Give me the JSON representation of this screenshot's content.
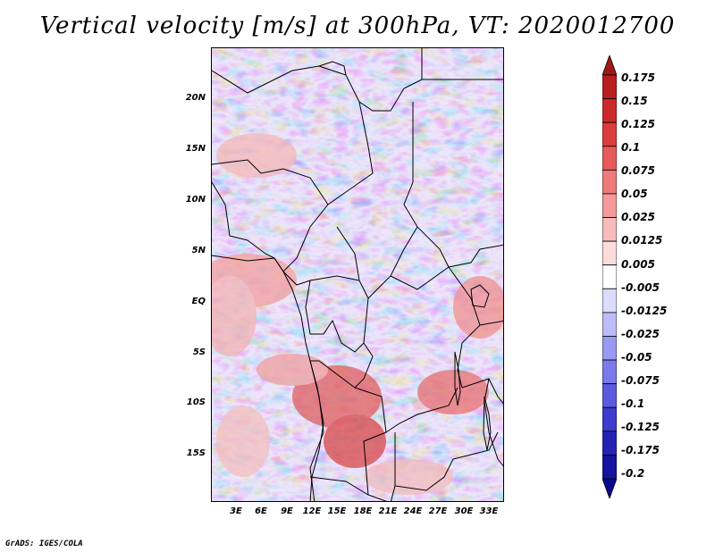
{
  "title": "Vertical velocity [m/s] at 300hPa, VT: 2020012700",
  "credit": "GrADS: IGES/COLA",
  "map": {
    "lat_labels": [
      "20N",
      "15N",
      "10N",
      "5N",
      "EQ",
      "5S",
      "10S",
      "15S"
    ],
    "lon_labels": [
      "3E",
      "6E",
      "9E",
      "12E",
      "15E",
      "18E",
      "21E",
      "24E",
      "27E",
      "30E",
      "33E"
    ],
    "variable": "vertical velocity",
    "level": "300hPa",
    "valid_time": "2020012700"
  },
  "colorbar": {
    "labels": [
      "0.175",
      "0.15",
      "0.125",
      "0.1",
      "0.075",
      "0.05",
      "0.025",
      "0.0125",
      "0.005",
      "-0.005",
      "-0.0125",
      "-0.025",
      "-0.05",
      "-0.075",
      "-0.1",
      "-0.125",
      "-0.175",
      "-0.2"
    ],
    "colors": [
      "#a01818",
      "#b82020",
      "#cc2a2a",
      "#dc3c3c",
      "#e65a5a",
      "#ee7a7a",
      "#f49a9a",
      "#f8bcbc",
      "#fcdcdc",
      "#ffffff",
      "#dcdcfc",
      "#bcbcf8",
      "#9a9af2",
      "#7a7aea",
      "#5a5ade",
      "#3c3cce",
      "#2424b4",
      "#1414a0",
      "#0a0a8c"
    ]
  }
}
